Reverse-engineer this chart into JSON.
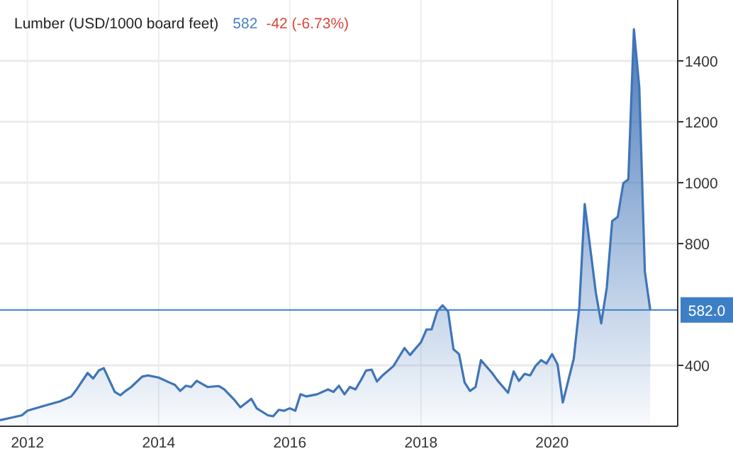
{
  "chart_data": {
    "type": "area",
    "title": "Lumber (USD/1000 board feet)",
    "annotations": [
      "582",
      "-42 (-6.73%)"
    ],
    "x": [
      "2011-08",
      "2011-10",
      "2011-12",
      "2012-01",
      "2012-04",
      "2012-07",
      "2012-09",
      "2012-10",
      "2012-12",
      "2013-01",
      "2013-02",
      "2013-03",
      "2013-05",
      "2013-06",
      "2013-07",
      "2013-08",
      "2013-10",
      "2013-11",
      "2014-01",
      "2014-03",
      "2014-04",
      "2014-05",
      "2014-06",
      "2014-07",
      "2014-08",
      "2014-10",
      "2014-12",
      "2015-01",
      "2015-03",
      "2015-04",
      "2015-06",
      "2015-07",
      "2015-09",
      "2015-10",
      "2015-11",
      "2015-12",
      "2016-01",
      "2016-02",
      "2016-03",
      "2016-04",
      "2016-06",
      "2016-08",
      "2016-09",
      "2016-10",
      "2016-11",
      "2016-12",
      "2017-01",
      "2017-02",
      "2017-03",
      "2017-04",
      "2017-05",
      "2017-06",
      "2017-08",
      "2017-10",
      "2017-11",
      "2018-01",
      "2018-02",
      "2018-03",
      "2018-04",
      "2018-05",
      "2018-06",
      "2018-07",
      "2018-08",
      "2018-09",
      "2018-10",
      "2018-11",
      "2018-12",
      "2019-02",
      "2019-03",
      "2019-05",
      "2019-06",
      "2019-07",
      "2019-08",
      "2019-09",
      "2019-10",
      "2019-11",
      "2019-12",
      "2020-01",
      "2020-02",
      "2020-03",
      "2020-05",
      "2020-06",
      "2020-07",
      "2020-09",
      "2020-10",
      "2020-11",
      "2020-12",
      "2021-01",
      "2021-02",
      "2021-03",
      "2021-04",
      "2021-05",
      "2021-06",
      "2021-07"
    ],
    "series": [
      {
        "color": "#3f74b8",
        "values": [
          220,
          228,
          236,
          251,
          267,
          282,
          298,
          321,
          375,
          357,
          383,
          391,
          313,
          302,
          316,
          329,
          363,
          367,
          360,
          344,
          336,
          316,
          333,
          329,
          349,
          329,
          332,
          321,
          285,
          262,
          290,
          259,
          236,
          233,
          254,
          251,
          259,
          251,
          305,
          298,
          305,
          321,
          313,
          333,
          305,
          329,
          321,
          352,
          383,
          386,
          347,
          367,
          398,
          457,
          434,
          476,
          518,
          518,
          577,
          597,
          577,
          453,
          437,
          344,
          316,
          329,
          417,
          375,
          352,
          310,
          380,
          349,
          372,
          367,
          398,
          417,
          406,
          437,
          403,
          278,
          422,
          592,
          930,
          639,
          538,
          656,
          874,
          888,
          998,
          1011,
          1504,
          1313,
          708,
          582
        ]
      }
    ],
    "xlim": [
      "2011-08",
      "2021-12"
    ],
    "xticks": [
      "2012",
      "2014",
      "2016",
      "2018",
      "2020"
    ],
    "ylim": [
      200,
      1600
    ],
    "yticks": [
      400,
      800,
      1000,
      1200,
      1400
    ],
    "ref_lines": [
      {
        "axis": "y",
        "value": 582,
        "label": "582.0",
        "color": "#3d7fc7"
      }
    ],
    "grid": true
  }
}
